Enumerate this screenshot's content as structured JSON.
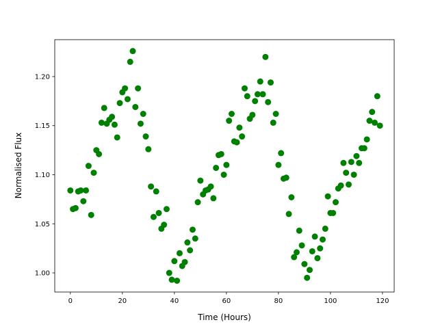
{
  "chart_data": {
    "type": "scatter",
    "title": "",
    "xlabel": "Time (Hours)",
    "ylabel": "Normalised Flux",
    "xlim": [
      -6,
      124.5
    ],
    "ylim": [
      0.9805,
      1.2376
    ],
    "xticks": [
      0,
      20,
      40,
      60,
      80,
      100,
      120
    ],
    "xtick_labels": [
      "0",
      "20",
      "40",
      "60",
      "80",
      "100",
      "120"
    ],
    "yticks": [
      1.0,
      1.05,
      1.1,
      1.15,
      1.2
    ],
    "ytick_labels": [
      "1.00",
      "1.05",
      "1.10",
      "1.15",
      "1.20"
    ],
    "grid": false,
    "marker_color": "#008000",
    "series": [
      {
        "x": [
          0,
          1,
          2,
          3,
          4,
          5,
          6,
          7,
          8,
          9,
          10,
          11,
          12,
          13,
          14,
          15,
          16,
          17,
          18,
          19,
          20,
          21,
          22,
          23,
          24,
          25,
          26,
          27,
          28,
          29,
          30,
          31,
          32,
          33,
          34,
          35,
          36,
          37,
          38,
          39,
          40,
          41,
          42,
          43,
          44,
          45,
          46,
          47,
          48,
          49,
          50,
          51,
          52,
          53,
          54,
          55,
          56,
          57,
          58,
          59,
          60,
          61,
          62,
          63,
          64,
          65,
          66,
          67,
          68,
          69,
          70,
          71,
          72,
          73,
          74,
          75,
          76,
          77,
          78,
          79,
          80,
          81,
          82,
          83,
          84,
          85,
          86,
          87,
          88,
          89,
          90,
          91,
          92,
          93,
          94,
          95,
          96,
          97,
          98,
          99,
          100,
          101,
          102,
          103,
          104,
          105,
          106,
          107,
          108,
          109,
          110,
          111,
          112,
          113,
          114,
          115,
          116,
          117,
          118,
          119
        ],
        "y": [
          1.084,
          1.065,
          1.066,
          1.083,
          1.084,
          1.073,
          1.084,
          1.109,
          1.059,
          1.102,
          1.125,
          1.121,
          1.153,
          1.168,
          1.152,
          1.156,
          1.159,
          1.151,
          1.138,
          1.173,
          1.184,
          1.188,
          1.177,
          1.215,
          1.226,
          1.169,
          1.188,
          1.152,
          1.162,
          1.139,
          1.126,
          1.088,
          1.057,
          1.083,
          1.061,
          1.045,
          1.049,
          1.065,
          1.0,
          0.993,
          1.012,
          0.992,
          1.02,
          1.007,
          1.011,
          1.031,
          1.023,
          1.044,
          1.035,
          1.072,
          1.094,
          1.08,
          1.084,
          1.085,
          1.088,
          1.076,
          1.107,
          1.12,
          1.121,
          1.1,
          1.11,
          1.155,
          1.162,
          1.134,
          1.133,
          1.148,
          1.139,
          1.188,
          1.18,
          1.157,
          1.161,
          1.175,
          1.182,
          1.195,
          1.182,
          1.22,
          1.174,
          1.194,
          1.153,
          1.162,
          1.11,
          1.122,
          1.096,
          1.097,
          1.06,
          1.077,
          1.016,
          1.021,
          1.043,
          1.028,
          1.009,
          0.995,
          1.003,
          1.022,
          1.037,
          1.015,
          1.025,
          1.034,
          1.045,
          1.078,
          1.061,
          1.061,
          1.072,
          1.086,
          1.089,
          1.112,
          1.102,
          1.09,
          1.113,
          1.1,
          1.119,
          1.112,
          1.127,
          1.127,
          1.136,
          1.155,
          1.164,
          1.153,
          1.18,
          1.15
        ]
      }
    ]
  }
}
